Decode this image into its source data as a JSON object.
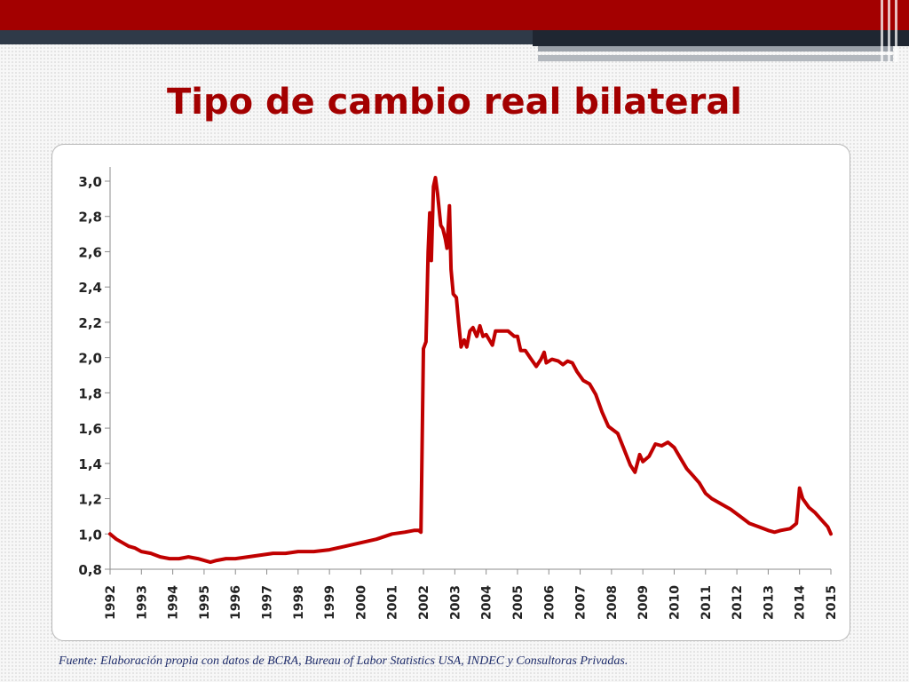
{
  "slide": {
    "title": "Tipo de cambio real bilateral",
    "source": "Fuente: Elaboración propia con datos de BCRA, Bureau of Labor Statistics USA, INDEC y Consultoras Privadas.",
    "accent_color": "#a30000",
    "band_color": "#2f3a48"
  },
  "chart_data": {
    "type": "line",
    "title": "",
    "xlabel": "",
    "ylabel": "",
    "ylim": [
      0.8,
      3.0
    ],
    "ytick_values": [
      0.8,
      1.0,
      1.2,
      1.4,
      1.6,
      1.8,
      2.0,
      2.2,
      2.4,
      2.6,
      2.8,
      3.0
    ],
    "ytick_labels": [
      "0,8",
      "1,0",
      "1,2",
      "1,4",
      "1,6",
      "1,8",
      "2,0",
      "2,2",
      "2,4",
      "2,6",
      "2,8",
      "3,0"
    ],
    "xlim": [
      1992,
      2015
    ],
    "xtick_labels": [
      "1992",
      "1993",
      "1994",
      "1995",
      "1996",
      "1997",
      "1998",
      "1999",
      "2000",
      "2001",
      "2002",
      "2003",
      "2004",
      "2005",
      "2006",
      "2007",
      "2008",
      "2009",
      "2010",
      "2011",
      "2012",
      "2013",
      "2014",
      "2015"
    ],
    "grid": false,
    "legend": "none",
    "series": [
      {
        "color": "#c00000",
        "points": [
          [
            1992.0,
            1.0
          ],
          [
            1992.2,
            0.97
          ],
          [
            1992.4,
            0.95
          ],
          [
            1992.6,
            0.93
          ],
          [
            1992.8,
            0.92
          ],
          [
            1993.0,
            0.9
          ],
          [
            1993.3,
            0.89
          ],
          [
            1993.6,
            0.87
          ],
          [
            1993.9,
            0.86
          ],
          [
            1994.2,
            0.86
          ],
          [
            1994.5,
            0.87
          ],
          [
            1994.8,
            0.86
          ],
          [
            1995.0,
            0.85
          ],
          [
            1995.2,
            0.84
          ],
          [
            1995.4,
            0.85
          ],
          [
            1995.7,
            0.86
          ],
          [
            1996.0,
            0.86
          ],
          [
            1996.4,
            0.87
          ],
          [
            1996.8,
            0.88
          ],
          [
            1997.2,
            0.89
          ],
          [
            1997.6,
            0.89
          ],
          [
            1998.0,
            0.9
          ],
          [
            1998.5,
            0.9
          ],
          [
            1999.0,
            0.91
          ],
          [
            1999.5,
            0.93
          ],
          [
            2000.0,
            0.95
          ],
          [
            2000.5,
            0.97
          ],
          [
            2001.0,
            1.0
          ],
          [
            2001.4,
            1.01
          ],
          [
            2001.7,
            1.02
          ],
          [
            2001.85,
            1.02
          ],
          [
            2001.92,
            1.01
          ],
          [
            2002.0,
            2.05
          ],
          [
            2002.08,
            2.09
          ],
          [
            2002.15,
            2.6
          ],
          [
            2002.2,
            2.82
          ],
          [
            2002.25,
            2.55
          ],
          [
            2002.32,
            2.97
          ],
          [
            2002.38,
            3.02
          ],
          [
            2002.45,
            2.93
          ],
          [
            2002.55,
            2.75
          ],
          [
            2002.62,
            2.73
          ],
          [
            2002.7,
            2.67
          ],
          [
            2002.75,
            2.62
          ],
          [
            2002.83,
            2.86
          ],
          [
            2002.88,
            2.5
          ],
          [
            2002.95,
            2.36
          ],
          [
            2003.05,
            2.34
          ],
          [
            2003.12,
            2.2
          ],
          [
            2003.2,
            2.06
          ],
          [
            2003.3,
            2.1
          ],
          [
            2003.38,
            2.06
          ],
          [
            2003.48,
            2.15
          ],
          [
            2003.58,
            2.17
          ],
          [
            2003.7,
            2.12
          ],
          [
            2003.8,
            2.18
          ],
          [
            2003.9,
            2.12
          ],
          [
            2004.0,
            2.13
          ],
          [
            2004.1,
            2.1
          ],
          [
            2004.2,
            2.07
          ],
          [
            2004.3,
            2.15
          ],
          [
            2004.5,
            2.15
          ],
          [
            2004.7,
            2.15
          ],
          [
            2004.9,
            2.12
          ],
          [
            2005.0,
            2.12
          ],
          [
            2005.1,
            2.04
          ],
          [
            2005.25,
            2.04
          ],
          [
            2005.4,
            2.0
          ],
          [
            2005.6,
            1.95
          ],
          [
            2005.75,
            1.99
          ],
          [
            2005.85,
            2.03
          ],
          [
            2005.92,
            1.97
          ],
          [
            2006.1,
            1.99
          ],
          [
            2006.3,
            1.98
          ],
          [
            2006.45,
            1.96
          ],
          [
            2006.6,
            1.98
          ],
          [
            2006.75,
            1.97
          ],
          [
            2006.9,
            1.92
          ],
          [
            2007.1,
            1.87
          ],
          [
            2007.3,
            1.85
          ],
          [
            2007.5,
            1.79
          ],
          [
            2007.7,
            1.69
          ],
          [
            2007.9,
            1.61
          ],
          [
            2008.2,
            1.57
          ],
          [
            2008.4,
            1.48
          ],
          [
            2008.6,
            1.39
          ],
          [
            2008.75,
            1.35
          ],
          [
            2008.9,
            1.45
          ],
          [
            2009.0,
            1.41
          ],
          [
            2009.2,
            1.44
          ],
          [
            2009.4,
            1.51
          ],
          [
            2009.6,
            1.5
          ],
          [
            2009.8,
            1.52
          ],
          [
            2010.0,
            1.49
          ],
          [
            2010.2,
            1.43
          ],
          [
            2010.4,
            1.37
          ],
          [
            2010.6,
            1.33
          ],
          [
            2010.8,
            1.29
          ],
          [
            2011.0,
            1.23
          ],
          [
            2011.2,
            1.2
          ],
          [
            2011.5,
            1.17
          ],
          [
            2011.8,
            1.14
          ],
          [
            2012.1,
            1.1
          ],
          [
            2012.4,
            1.06
          ],
          [
            2012.7,
            1.04
          ],
          [
            2013.0,
            1.02
          ],
          [
            2013.2,
            1.01
          ],
          [
            2013.4,
            1.02
          ],
          [
            2013.7,
            1.03
          ],
          [
            2013.9,
            1.06
          ],
          [
            2014.0,
            1.26
          ],
          [
            2014.1,
            1.2
          ],
          [
            2014.3,
            1.15
          ],
          [
            2014.5,
            1.12
          ],
          [
            2014.7,
            1.08
          ],
          [
            2014.9,
            1.04
          ],
          [
            2015.0,
            1.0
          ]
        ]
      }
    ]
  }
}
